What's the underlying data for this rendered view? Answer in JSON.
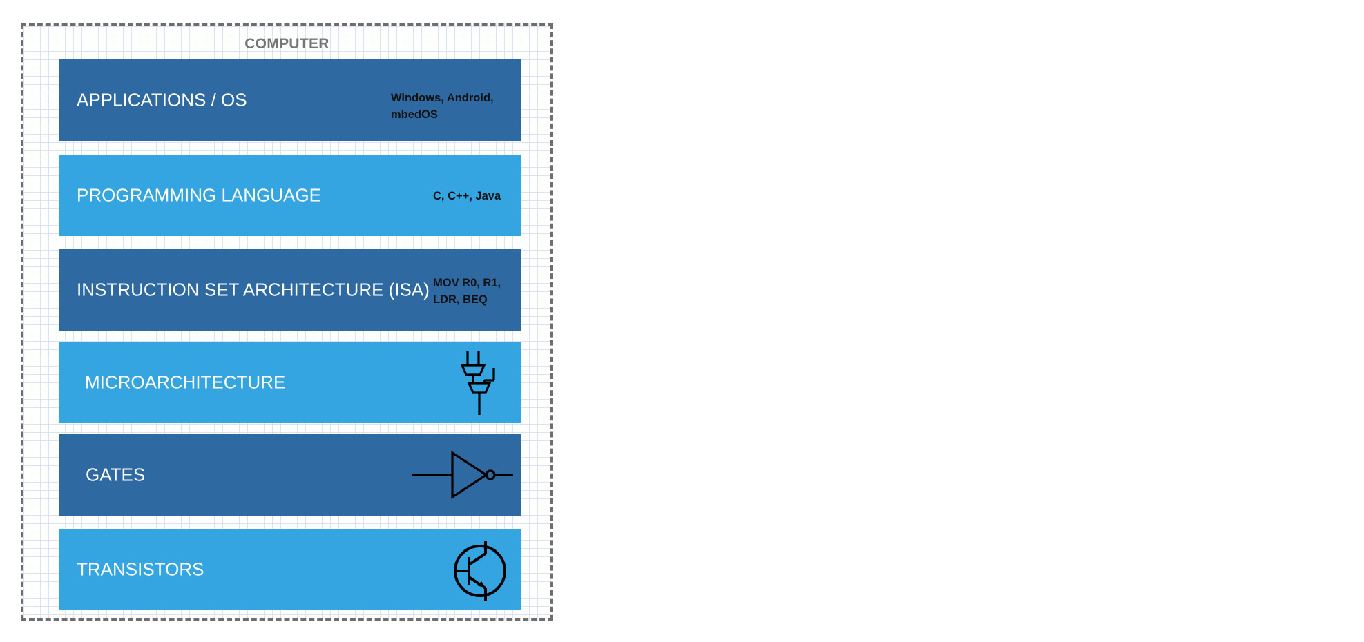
{
  "diagram": {
    "title": "COMPUTER",
    "colors": {
      "dark_layer": "#2f69a2",
      "light_layer": "#35a5e1",
      "frame_border": "#6e6e6e",
      "grid": "#d9e4ee"
    },
    "layers": [
      {
        "name": "APPLICATIONS / OS",
        "example": "Windows, Android,\nmbedOS",
        "icon": "none",
        "shade": "dark"
      },
      {
        "name": "PROGRAMMING LANGUAGE",
        "example": "C, C++, Java",
        "icon": "none",
        "shade": "light"
      },
      {
        "name": "INSTRUCTION SET ARCHITECTURE (ISA)",
        "example": "MOV R0, R1,\nLDR,  BEQ",
        "icon": "none",
        "shade": "dark"
      },
      {
        "name": "MICROARCHITECTURE",
        "example": "",
        "icon": "multiplexer-circuit-icon",
        "shade": "light"
      },
      {
        "name": "GATES",
        "example": "",
        "icon": "not-gate-icon",
        "shade": "dark"
      },
      {
        "name": "TRANSISTORS",
        "example": "",
        "icon": "transistor-icon",
        "shade": "light"
      }
    ]
  }
}
